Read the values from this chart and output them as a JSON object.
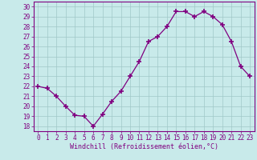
{
  "x": [
    0,
    1,
    2,
    3,
    4,
    5,
    6,
    7,
    8,
    9,
    10,
    11,
    12,
    13,
    14,
    15,
    16,
    17,
    18,
    19,
    20,
    21,
    22,
    23
  ],
  "y": [
    22,
    21.8,
    21,
    20,
    19.1,
    19,
    18,
    19.2,
    20.5,
    21.5,
    23,
    24.5,
    26.5,
    27,
    28,
    29.5,
    29.5,
    29,
    29.5,
    29,
    28.2,
    26.5,
    24,
    23
  ],
  "line_color": "#800080",
  "marker_color": "#800080",
  "bg_color": "#c8eaea",
  "grid_color": "#a0c8c8",
  "axis_color": "#800080",
  "xlabel": "Windchill (Refroidissement éolien,°C)",
  "ylim": [
    17.5,
    30.5
  ],
  "xlim": [
    -0.5,
    23.5
  ],
  "yticks": [
    18,
    19,
    20,
    21,
    22,
    23,
    24,
    25,
    26,
    27,
    28,
    29,
    30
  ],
  "xticks": [
    0,
    1,
    2,
    3,
    4,
    5,
    6,
    7,
    8,
    9,
    10,
    11,
    12,
    13,
    14,
    15,
    16,
    17,
    18,
    19,
    20,
    21,
    22,
    23
  ],
  "tick_fontsize": 5.5,
  "xlabel_fontsize": 6.0,
  "marker_size": 4,
  "marker_edge_width": 1.2,
  "line_width": 0.9
}
